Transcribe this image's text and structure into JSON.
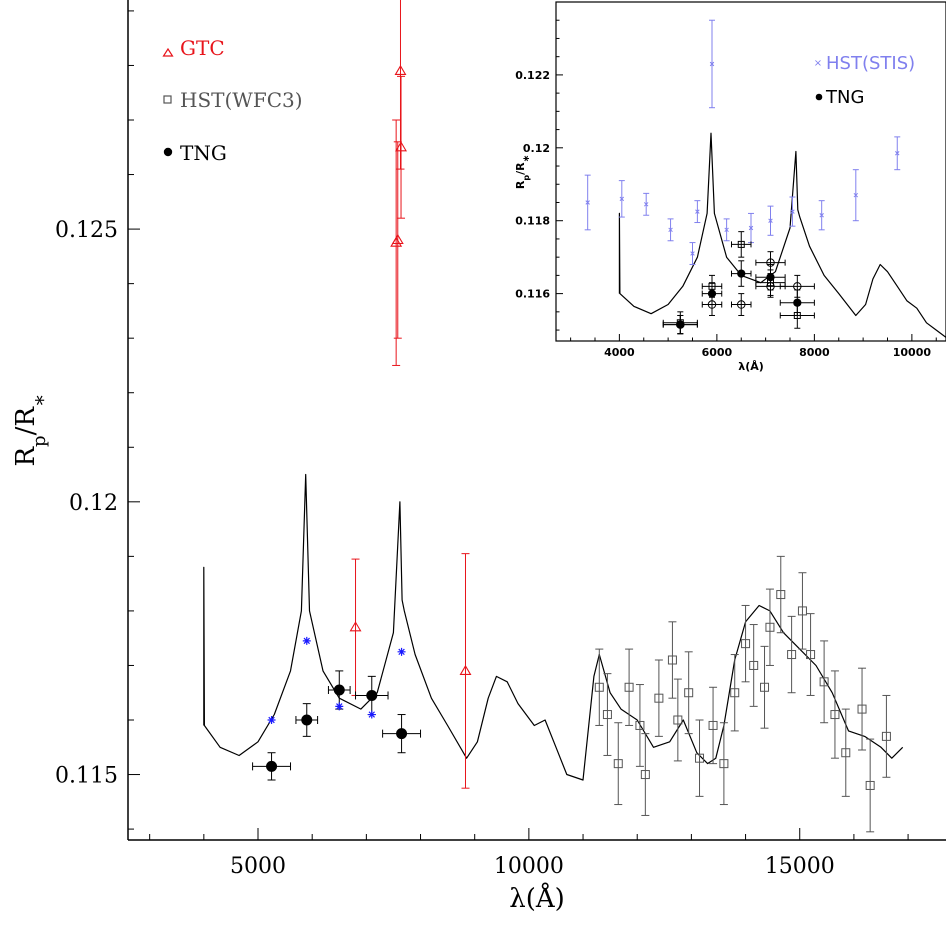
{
  "chart_data": [
    {
      "type": "scatter",
      "xlabel": "λ(Å)",
      "ylabel": "R_p/R_*",
      "xlim": [
        2600,
        17700
      ],
      "ylim": [
        0.1138,
        0.1292
      ],
      "x_ticks": [
        5000,
        10000,
        15000
      ],
      "y_ticks": [
        0.115,
        0.12,
        0.125
      ],
      "legend": {
        "position": "top-left",
        "entries": [
          "GTC",
          "HST(WFC3)",
          "TNG"
        ]
      },
      "colors": {
        "GTC": "#e8141b",
        "HST(WFC3)": "#555555",
        "TNG": "#000000",
        "model_points": "#1a1aff",
        "model": "#000000"
      },
      "series": [
        {
          "name": "GTC",
          "marker": "triangle-open",
          "points": [
            {
              "x": 6800,
              "y": 0.1177,
              "err": 0.00125
            },
            {
              "x": 7550,
              "y": 0.12475,
              "err": 0.00225
            },
            {
              "x": 7580,
              "y": 0.1248,
              "err": 0.0018
            },
            {
              "x": 7630,
              "y": 0.1279,
              "err": 0.0018
            },
            {
              "x": 7640,
              "y": 0.1265,
              "err": 0.0013
            },
            {
              "x": 8830,
              "y": 0.1169,
              "err": 0.00215
            }
          ]
        },
        {
          "name": "TNG",
          "marker": "filled-circle",
          "points": [
            {
              "x": 5250,
              "y": 0.11515,
              "err": 0.00025,
              "xerr": 350
            },
            {
              "x": 5900,
              "y": 0.116,
              "err": 0.0003,
              "xerr": 200
            },
            {
              "x": 6500,
              "y": 0.11655,
              "err": 0.00035,
              "xerr": 200
            },
            {
              "x": 7100,
              "y": 0.11645,
              "err": 0.00035,
              "xerr": 300
            },
            {
              "x": 7650,
              "y": 0.11575,
              "err": 0.00035,
              "xerr": 350
            }
          ]
        },
        {
          "name": "HST(WFC3)",
          "marker": "open-square",
          "points": [
            {
              "x": 11300,
              "y": 0.1166,
              "err": 0.0007
            },
            {
              "x": 11450,
              "y": 0.1161,
              "err": 0.00075
            },
            {
              "x": 11650,
              "y": 0.1152,
              "err": 0.00075
            },
            {
              "x": 11850,
              "y": 0.1166,
              "err": 0.0007
            },
            {
              "x": 12050,
              "y": 0.1159,
              "err": 0.00075
            },
            {
              "x": 12150,
              "y": 0.115,
              "err": 0.00075
            },
            {
              "x": 12400,
              "y": 0.1164,
              "err": 0.0007
            },
            {
              "x": 12650,
              "y": 0.1171,
              "err": 0.0007
            },
            {
              "x": 12750,
              "y": 0.116,
              "err": 0.00075
            },
            {
              "x": 12950,
              "y": 0.1165,
              "err": 0.00075
            },
            {
              "x": 13150,
              "y": 0.1153,
              "err": 0.0007
            },
            {
              "x": 13400,
              "y": 0.1159,
              "err": 0.0007
            },
            {
              "x": 13600,
              "y": 0.1152,
              "err": 0.00075
            },
            {
              "x": 13800,
              "y": 0.1165,
              "err": 0.0007
            },
            {
              "x": 14000,
              "y": 0.1174,
              "err": 0.0007
            },
            {
              "x": 14150,
              "y": 0.117,
              "err": 0.00075
            },
            {
              "x": 14350,
              "y": 0.1166,
              "err": 0.00075
            },
            {
              "x": 14450,
              "y": 0.1177,
              "err": 0.0007
            },
            {
              "x": 14650,
              "y": 0.1183,
              "err": 0.0007
            },
            {
              "x": 14850,
              "y": 0.1172,
              "err": 0.0007
            },
            {
              "x": 15050,
              "y": 0.118,
              "err": 0.0007
            },
            {
              "x": 15200,
              "y": 0.1172,
              "err": 0.00075
            },
            {
              "x": 15450,
              "y": 0.1167,
              "err": 0.00075
            },
            {
              "x": 15650,
              "y": 0.1161,
              "err": 0.0008
            },
            {
              "x": 15850,
              "y": 0.1154,
              "err": 0.0008
            },
            {
              "x": 16150,
              "y": 0.1162,
              "err": 0.00075
            },
            {
              "x": 16300,
              "y": 0.1148,
              "err": 0.00085
            },
            {
              "x": 16600,
              "y": 0.1157,
              "err": 0.00075
            }
          ]
        },
        {
          "name": "model binned",
          "marker": "asterisk",
          "points": [
            {
              "x": 5250,
              "y": 0.116
            },
            {
              "x": 5900,
              "y": 0.11745
            },
            {
              "x": 6500,
              "y": 0.11625
            },
            {
              "x": 7100,
              "y": 0.1161
            },
            {
              "x": 7650,
              "y": 0.11725
            }
          ]
        },
        {
          "name": "model",
          "marker": "line",
          "points": [
            {
              "x": 4000,
              "y": 0.1159
            },
            {
              "x": 4000,
              "y": 0.1188
            },
            {
              "x": 4010,
              "y": 0.1159
            },
            {
              "x": 4300,
              "y": 0.1155
            },
            {
              "x": 4650,
              "y": 0.11535
            },
            {
              "x": 5000,
              "y": 0.1156
            },
            {
              "x": 5300,
              "y": 0.1161
            },
            {
              "x": 5600,
              "y": 0.1169
            },
            {
              "x": 5800,
              "y": 0.118
            },
            {
              "x": 5880,
              "y": 0.1205
            },
            {
              "x": 5950,
              "y": 0.118
            },
            {
              "x": 6200,
              "y": 0.1169
            },
            {
              "x": 6500,
              "y": 0.1164
            },
            {
              "x": 6900,
              "y": 0.1162
            },
            {
              "x": 7200,
              "y": 0.1165
            },
            {
              "x": 7500,
              "y": 0.1176
            },
            {
              "x": 7620,
              "y": 0.12
            },
            {
              "x": 7660,
              "y": 0.1182
            },
            {
              "x": 7700,
              "y": 0.118
            },
            {
              "x": 7900,
              "y": 0.1172
            },
            {
              "x": 8200,
              "y": 0.1164
            },
            {
              "x": 8500,
              "y": 0.1159
            },
            {
              "x": 8850,
              "y": 0.1153
            },
            {
              "x": 9050,
              "y": 0.1156
            },
            {
              "x": 9250,
              "y": 0.1164
            },
            {
              "x": 9400,
              "y": 0.1168
            },
            {
              "x": 9600,
              "y": 0.1167
            },
            {
              "x": 9800,
              "y": 0.1163
            },
            {
              "x": 10100,
              "y": 0.1159
            },
            {
              "x": 10300,
              "y": 0.116
            },
            {
              "x": 10500,
              "y": 0.1155
            },
            {
              "x": 10700,
              "y": 0.115
            },
            {
              "x": 11000,
              "y": 0.1149
            },
            {
              "x": 11200,
              "y": 0.1168
            },
            {
              "x": 11300,
              "y": 0.1172
            },
            {
              "x": 11500,
              "y": 0.1165
            },
            {
              "x": 11700,
              "y": 0.1162
            },
            {
              "x": 12000,
              "y": 0.116
            },
            {
              "x": 12300,
              "y": 0.1155
            },
            {
              "x": 12600,
              "y": 0.1156
            },
            {
              "x": 12850,
              "y": 0.116
            },
            {
              "x": 13100,
              "y": 0.1154
            },
            {
              "x": 13300,
              "y": 0.1152
            },
            {
              "x": 13450,
              "y": 0.1153
            },
            {
              "x": 13600,
              "y": 0.1159
            },
            {
              "x": 13800,
              "y": 0.1171
            },
            {
              "x": 14000,
              "y": 0.1178
            },
            {
              "x": 14250,
              "y": 0.1181
            },
            {
              "x": 14450,
              "y": 0.118
            },
            {
              "x": 14700,
              "y": 0.1176
            },
            {
              "x": 15000,
              "y": 0.1173
            },
            {
              "x": 15300,
              "y": 0.117
            },
            {
              "x": 15600,
              "y": 0.1165
            },
            {
              "x": 15900,
              "y": 0.1158
            },
            {
              "x": 16200,
              "y": 0.1157
            },
            {
              "x": 16500,
              "y": 0.1155
            },
            {
              "x": 16700,
              "y": 0.1153
            },
            {
              "x": 16900,
              "y": 0.1155
            }
          ]
        }
      ]
    },
    {
      "type": "scatter",
      "xlabel": "λ(Å)",
      "ylabel": "R_p/R_*",
      "xlim": [
        2700,
        10700
      ],
      "ylim": [
        0.1147,
        0.124
      ],
      "x_ticks": [
        4000,
        6000,
        8000,
        10000
      ],
      "y_ticks": [
        0.116,
        0.118,
        0.12,
        0.122
      ],
      "legend": {
        "position": "top-right",
        "entries": [
          "HST(STIS)",
          "TNG"
        ]
      },
      "colors": {
        "HST(STIS)": "#8080ee",
        "TNG": "#000000",
        "model": "#000000"
      },
      "series": [
        {
          "name": "HST(STIS)",
          "marker": "cross",
          "points": [
            {
              "x": 3350,
              "y": 0.1185,
              "err": 0.00075
            },
            {
              "x": 4050,
              "y": 0.1186,
              "err": 0.0005
            },
            {
              "x": 4550,
              "y": 0.11845,
              "err": 0.0003
            },
            {
              "x": 5050,
              "y": 0.11775,
              "err": 0.0003
            },
            {
              "x": 5500,
              "y": 0.1171,
              "err": 0.0003
            },
            {
              "x": 5600,
              "y": 0.11825,
              "err": 0.0003
            },
            {
              "x": 5900,
              "y": 0.1223,
              "err": 0.0012
            },
            {
              "x": 6200,
              "y": 0.11775,
              "err": 0.0003
            },
            {
              "x": 6700,
              "y": 0.1178,
              "err": 0.0004
            },
            {
              "x": 7100,
              "y": 0.118,
              "err": 0.0004
            },
            {
              "x": 7550,
              "y": 0.11825,
              "err": 0.0004
            },
            {
              "x": 8150,
              "y": 0.11815,
              "err": 0.0004
            },
            {
              "x": 8850,
              "y": 0.1187,
              "err": 0.0007
            },
            {
              "x": 9700,
              "y": 0.11985,
              "err": 0.00045
            }
          ]
        },
        {
          "name": "TNG",
          "marker": "filled-circle",
          "points": [
            {
              "x": 5250,
              "y": 0.11515,
              "err": 0.00025,
              "xerr": 350
            },
            {
              "x": 5900,
              "y": 0.116,
              "err": 0.0003,
              "xerr": 200
            },
            {
              "x": 6500,
              "y": 0.11655,
              "err": 0.00035,
              "xerr": 200
            },
            {
              "x": 7100,
              "y": 0.11645,
              "err": 0.00035,
              "xerr": 300
            },
            {
              "x": 7650,
              "y": 0.11575,
              "err": 0.00035,
              "xerr": 350
            }
          ]
        },
        {
          "name": "open circles",
          "marker": "open-circle",
          "points": [
            {
              "x": 5250,
              "y": 0.11515,
              "err": 0.00025,
              "xerr": 350
            },
            {
              "x": 5900,
              "y": 0.1157,
              "err": 0.0003,
              "xerr": 200
            },
            {
              "x": 6500,
              "y": 0.1157,
              "err": 0.0003,
              "xerr": 200
            },
            {
              "x": 7100,
              "y": 0.1162,
              "err": 0.0003,
              "xerr": 300
            },
            {
              "x": 7100,
              "y": 0.11685,
              "err": 0.0003,
              "xerr": 300
            },
            {
              "x": 7650,
              "y": 0.1162,
              "err": 0.0003,
              "xerr": 350
            }
          ]
        },
        {
          "name": "open squares",
          "marker": "open-square",
          "points": [
            {
              "x": 5250,
              "y": 0.1152,
              "err": 0.0003,
              "xerr": 350
            },
            {
              "x": 5900,
              "y": 0.1162,
              "err": 0.0003,
              "xerr": 200
            },
            {
              "x": 6500,
              "y": 0.11735,
              "err": 0.00035,
              "xerr": 200
            },
            {
              "x": 7100,
              "y": 0.1163,
              "err": 0.00035,
              "xerr": 300
            },
            {
              "x": 7650,
              "y": 0.1154,
              "err": 0.00035,
              "xerr": 350
            }
          ]
        },
        {
          "name": "model",
          "marker": "line",
          "points": [
            {
              "x": 4000,
              "y": 0.116
            },
            {
              "x": 4000,
              "y": 0.1182
            },
            {
              "x": 4010,
              "y": 0.116
            },
            {
              "x": 4300,
              "y": 0.11565
            },
            {
              "x": 4650,
              "y": 0.11545
            },
            {
              "x": 5000,
              "y": 0.1157
            },
            {
              "x": 5300,
              "y": 0.1162
            },
            {
              "x": 5600,
              "y": 0.117
            },
            {
              "x": 5800,
              "y": 0.1182
            },
            {
              "x": 5880,
              "y": 0.1204
            },
            {
              "x": 5950,
              "y": 0.1182
            },
            {
              "x": 6200,
              "y": 0.117
            },
            {
              "x": 6500,
              "y": 0.1165
            },
            {
              "x": 6900,
              "y": 0.1163
            },
            {
              "x": 7200,
              "y": 0.1166
            },
            {
              "x": 7500,
              "y": 0.1178
            },
            {
              "x": 7620,
              "y": 0.1199
            },
            {
              "x": 7660,
              "y": 0.1183
            },
            {
              "x": 7700,
              "y": 0.1181
            },
            {
              "x": 7900,
              "y": 0.1173
            },
            {
              "x": 8200,
              "y": 0.1165
            },
            {
              "x": 8500,
              "y": 0.116
            },
            {
              "x": 8850,
              "y": 0.1154
            },
            {
              "x": 9050,
              "y": 0.1157
            },
            {
              "x": 9200,
              "y": 0.1164
            },
            {
              "x": 9350,
              "y": 0.1168
            },
            {
              "x": 9500,
              "y": 0.1166
            },
            {
              "x": 9700,
              "y": 0.1162
            },
            {
              "x": 9900,
              "y": 0.1158
            },
            {
              "x": 10100,
              "y": 0.1156
            },
            {
              "x": 10300,
              "y": 0.1152
            },
            {
              "x": 10500,
              "y": 0.115
            },
            {
              "x": 10700,
              "y": 0.1148
            }
          ]
        }
      ]
    }
  ]
}
